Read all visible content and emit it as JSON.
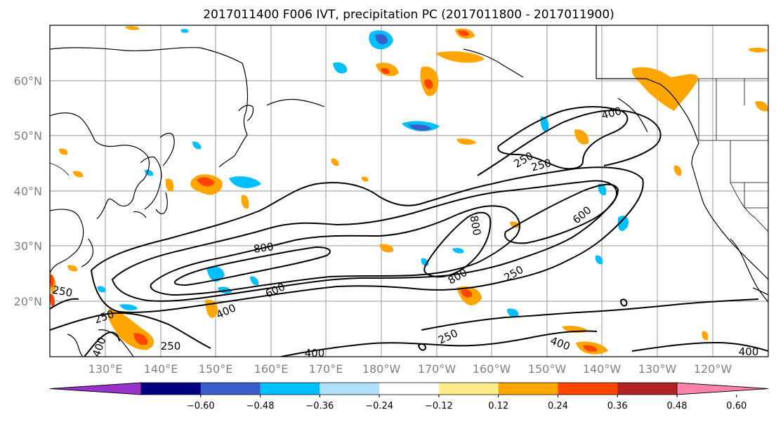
{
  "title": "2017011400 F006 IVT, precipitation PC (2017011800 - 2017011900)",
  "map": {
    "lat_labels": [
      "60°N",
      "50°N",
      "40°N",
      "30°N",
      "20°N"
    ],
    "lon_labels": [
      "130°E",
      "140°E",
      "150°E",
      "160°E",
      "170°E",
      "180°W",
      "170°W",
      "160°W",
      "150°W",
      "140°W",
      "130°W",
      "120°W"
    ],
    "ivt_contour_levels": [
      250,
      400,
      600,
      800
    ],
    "contour_labels": [
      {
        "text": "800",
        "rot": -8
      },
      {
        "text": "600",
        "rot": -25
      },
      {
        "text": "400",
        "rot": -25
      },
      {
        "text": "250",
        "rot": -20
      },
      {
        "text": "250",
        "rot": 0
      },
      {
        "text": "400",
        "rot": 0
      },
      {
        "text": "250",
        "rot": -25
      },
      {
        "text": "400",
        "rot": 20
      },
      {
        "text": "250",
        "rot": -30
      },
      {
        "text": "800",
        "rot": 80
      },
      {
        "text": "800",
        "rot": -30
      },
      {
        "text": "250",
        "rot": -30
      },
      {
        "text": "600",
        "rot": -40
      },
      {
        "text": "400",
        "rot": -15
      },
      {
        "text": "250",
        "rot": -15
      },
      {
        "text": "250",
        "rot": 10
      },
      {
        "text": "400",
        "rot": 0
      },
      {
        "text": "400",
        "rot": 20
      }
    ]
  },
  "colorbar": {
    "ticks": [
      "−0.60",
      "−0.48",
      "−0.36",
      "−0.24",
      "−0.12",
      "0.12",
      "0.24",
      "0.36",
      "0.48",
      "0.60"
    ],
    "colors": [
      "#9932cc",
      "#000080",
      "#3a5fcd",
      "#00bfff",
      "#b0e2ff",
      "#ffffff",
      "#ffec8b",
      "#ffa500",
      "#ff4500",
      "#b22222",
      "#ff82ab"
    ]
  }
}
